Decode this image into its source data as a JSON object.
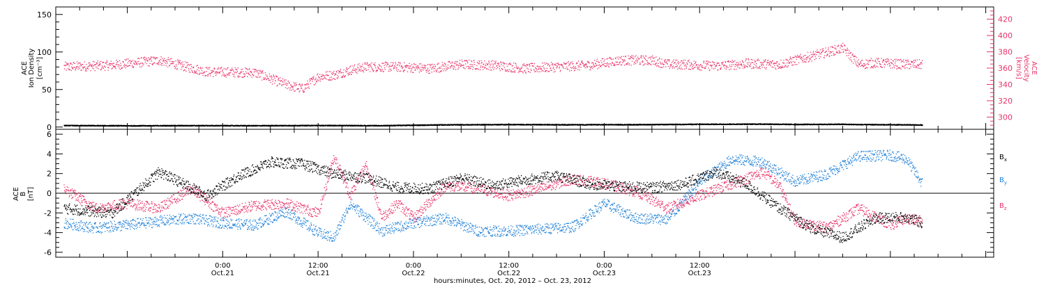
{
  "chart_data": [
    {
      "type": "scatter",
      "panel": "top",
      "title": "",
      "ylabel_left": [
        "ACE",
        "Ion Density",
        "[cm⁻³]"
      ],
      "ylabel_right": [
        "ACE",
        "Velocity",
        "[km/s]"
      ],
      "ylim_left": [
        -3,
        160
      ],
      "ylim_right": [
        285,
        435
      ],
      "yticks_left": [
        "0",
        "50",
        "100",
        "150"
      ],
      "yticks_left_values": [
        0,
        50,
        100,
        150
      ],
      "yticks_right": [
        "300",
        "320",
        "340",
        "360",
        "380",
        "400",
        "420"
      ],
      "yticks_right_values": [
        300,
        320,
        340,
        360,
        380,
        400,
        420
      ],
      "colors": {
        "density": "#000000",
        "velocity": "#e8336a"
      },
      "series": [
        {
          "axis": "left",
          "hours": [
            -20,
            -12,
            -4,
            4,
            12,
            20,
            28,
            36,
            44,
            52,
            60,
            68,
            72,
            78,
            80,
            86,
            88
          ],
          "values": [
            2.5,
            2.2,
            2.4,
            2.3,
            2.6,
            2.4,
            3.5,
            3.8,
            3.6,
            3.7,
            4.2,
            4.5,
            4.0,
            4.2,
            3.8,
            3.5,
            3.2
          ]
        },
        {
          "axis": "right",
          "hours": [
            -20,
            -14,
            -8,
            -2,
            4,
            8,
            10,
            12,
            14,
            16,
            18,
            22,
            26,
            30,
            34,
            38,
            42,
            46,
            50,
            54,
            56,
            58,
            62,
            66,
            70,
            74,
            78,
            80,
            82,
            86,
            88
          ],
          "values": [
            362,
            364,
            370,
            356,
            355,
            340,
            335,
            350,
            352,
            358,
            362,
            362,
            360,
            365,
            364,
            360,
            362,
            364,
            370,
            370,
            365,
            365,
            363,
            366,
            365,
            375,
            385,
            365,
            367,
            365,
            365
          ]
        }
      ]
    },
    {
      "type": "scatter",
      "panel": "bottom",
      "title": "",
      "ylabel": [
        "ACE",
        "B",
        "[nT]"
      ],
      "ylim": [
        -6.5,
        6.5
      ],
      "yticks": [
        "-6",
        "-4",
        "-2",
        "0",
        "2",
        "4",
        "6"
      ],
      "yticks_values": [
        -6,
        -4,
        -2,
        0,
        2,
        4,
        6
      ],
      "colors": {
        "Bx": "#000000",
        "By": "#1f80d8",
        "Bz": "#e8336a"
      },
      "series": [
        {
          "name": "B",
          "sub": "x",
          "hours": [
            -20,
            -14,
            -8,
            -2,
            2,
            6,
            10,
            14,
            18,
            22,
            26,
            30,
            34,
            38,
            42,
            46,
            50,
            54,
            58,
            62,
            66,
            70,
            74,
            78,
            82,
            86,
            88
          ],
          "values": [
            -1.5,
            -2,
            2.2,
            -0.2,
            1.8,
            3.2,
            3.0,
            2.0,
            1.6,
            0.6,
            0.5,
            1.6,
            0.8,
            1.4,
            1.8,
            1.0,
            0.7,
            0.6,
            1.0,
            2.2,
            0.9,
            -1.5,
            -3.5,
            -4.5,
            -2.5,
            -2.4,
            -3
          ]
        },
        {
          "name": "B",
          "sub": "y",
          "hours": [
            -20,
            -16,
            -12,
            -8,
            -4,
            0,
            4,
            8,
            12,
            14,
            16,
            20,
            24,
            28,
            32,
            36,
            40,
            44,
            48,
            52,
            56,
            60,
            64,
            68,
            72,
            76,
            80,
            84,
            86,
            88
          ],
          "values": [
            -3,
            -3.5,
            -3.2,
            -2.8,
            -2.5,
            -3.0,
            -3.2,
            -1.8,
            -4.0,
            -4.5,
            -1.0,
            -3.8,
            -3.0,
            -2.5,
            -3.8,
            -3.8,
            -3.6,
            -3.4,
            -1.0,
            -2.5,
            -2.6,
            1.2,
            3.5,
            3.2,
            1.2,
            2.0,
            3.8,
            3.9,
            3.5,
            1.0
          ]
        },
        {
          "name": "B",
          "sub": "z",
          "hours": [
            -20,
            -16,
            -12,
            -8,
            -4,
            0,
            4,
            8,
            12,
            14,
            16,
            18,
            20,
            22,
            24,
            28,
            32,
            36,
            40,
            44,
            48,
            52,
            56,
            60,
            64,
            68,
            70,
            72,
            76,
            80,
            84,
            86,
            88
          ],
          "values": [
            0.5,
            -1.5,
            -1.0,
            -1.5,
            0.5,
            -2.0,
            -1.2,
            -1.0,
            -2.0,
            3.8,
            -0.2,
            3.0,
            -2.4,
            -1.0,
            -2.5,
            0.8,
            0.5,
            -0.2,
            0.5,
            1.5,
            1.0,
            0.2,
            -1.5,
            -0.2,
            1.0,
            2.2,
            0.8,
            -2.8,
            -3.5,
            -1.5,
            -3.2,
            -2.5,
            -2.8
          ]
        }
      ]
    }
  ],
  "time_axis": {
    "xlim_hours": [
      -21,
      97
    ],
    "major_ticks": [
      {
        "h": 0,
        "time": "0:00",
        "date": "Oct.21"
      },
      {
        "h": 12,
        "time": "12:00",
        "date": "Oct.21"
      },
      {
        "h": 24,
        "time": "0:00",
        "date": "Oct.22"
      },
      {
        "h": 36,
        "time": "12:00",
        "date": "Oct.22"
      },
      {
        "h": 48,
        "time": "0:00",
        "date": "Oct.23"
      },
      {
        "h": 60,
        "time": "12:00",
        "date": "Oct.23"
      }
    ],
    "caption": "hours:minutes, Oct. 20, 2012 – Oct. 23, 2012"
  }
}
